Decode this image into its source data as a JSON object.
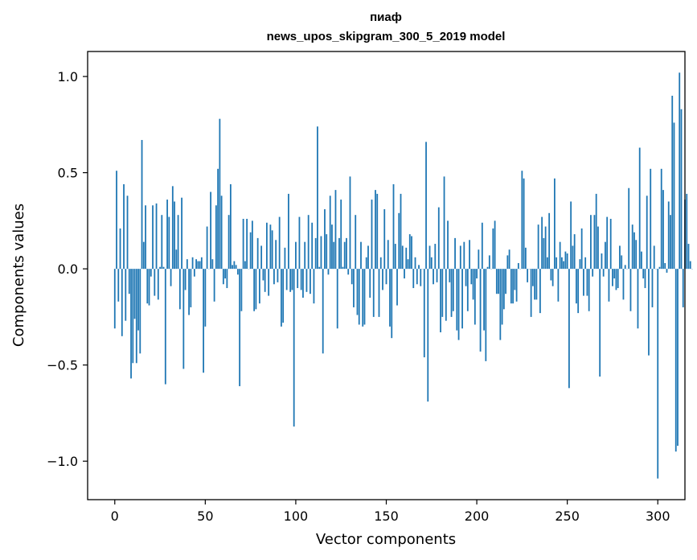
{
  "chart_data": {
    "type": "bar",
    "title": "пиаф",
    "subtitle": "news_upos_skipgram_300_5_2019 model",
    "xlabel": "Vector components",
    "ylabel": "Components values",
    "xlim": [
      -15,
      315
    ],
    "ylim": [
      -1.2,
      1.13
    ],
    "xticks": [
      0,
      50,
      100,
      150,
      200,
      250,
      300
    ],
    "yticks": [
      -1.0,
      -0.5,
      0.0,
      0.5,
      1.0
    ],
    "ytick_labels": [
      "−1.0",
      "−0.5",
      "0.0",
      "0.5",
      "1.0"
    ],
    "bar_color": "#1f77b4",
    "grid": false,
    "values": [
      -0.31,
      0.51,
      -0.17,
      0.21,
      -0.35,
      0.44,
      -0.27,
      0.38,
      -0.13,
      -0.57,
      -0.49,
      -0.26,
      -0.49,
      -0.32,
      -0.44,
      0.67,
      0.14,
      0.33,
      -0.18,
      -0.19,
      -0.04,
      0.33,
      -0.14,
      0.34,
      -0.16,
      0.01,
      0.28,
      0.01,
      -0.6,
      0.36,
      0.27,
      -0.09,
      0.43,
      0.35,
      0.1,
      0.28,
      -0.21,
      0.37,
      -0.52,
      -0.11,
      0.05,
      -0.24,
      -0.2,
      0.06,
      -0.04,
      0.05,
      0.04,
      0.04,
      0.06,
      -0.54,
      -0.3,
      0.22,
      0.0,
      0.4,
      0.05,
      -0.17,
      0.33,
      0.52,
      0.78,
      0.38,
      -0.08,
      -0.05,
      -0.1,
      0.28,
      0.44,
      0.02,
      0.04,
      0.02,
      -0.03,
      -0.61,
      -0.22,
      0.26,
      0.04,
      0.26,
      0.0,
      0.19,
      0.25,
      -0.22,
      -0.21,
      0.16,
      -0.18,
      0.12,
      -0.06,
      -0.12,
      0.24,
      -0.14,
      0.23,
      0.2,
      -0.08,
      0.15,
      -0.07,
      0.27,
      -0.3,
      -0.28,
      0.11,
      -0.11,
      0.39,
      -0.12,
      -0.11,
      -0.82,
      0.14,
      -0.1,
      0.27,
      -0.11,
      -0.15,
      0.14,
      -0.12,
      0.28,
      -0.13,
      0.24,
      -0.18,
      0.16,
      0.74,
      0.01,
      0.17,
      -0.44,
      0.31,
      0.18,
      -0.03,
      0.38,
      0.23,
      0.14,
      0.41,
      -0.31,
      0.16,
      0.36,
      0.01,
      0.14,
      0.16,
      -0.03,
      0.48,
      -0.08,
      -0.2,
      0.28,
      -0.24,
      -0.29,
      0.14,
      -0.3,
      -0.29,
      0.06,
      0.12,
      -0.15,
      0.36,
      -0.25,
      0.41,
      0.39,
      -0.25,
      0.06,
      -0.11,
      0.31,
      -0.08,
      0.15,
      -0.3,
      -0.36,
      0.44,
      0.13,
      -0.19,
      0.29,
      0.39,
      0.12,
      -0.05,
      0.11,
      0.05,
      0.18,
      0.17,
      -0.1,
      0.06,
      -0.08,
      0.02,
      -0.09,
      0.0,
      -0.46,
      0.66,
      -0.69,
      0.12,
      0.06,
      -0.08,
      0.13,
      -0.07,
      0.32,
      -0.33,
      -0.25,
      0.48,
      -0.27,
      0.25,
      -0.07,
      -0.25,
      -0.22,
      0.16,
      -0.32,
      -0.37,
      0.12,
      -0.31,
      0.14,
      -0.09,
      -0.22,
      0.15,
      -0.08,
      -0.16,
      -0.29,
      -0.05,
      0.1,
      -0.43,
      0.24,
      -0.32,
      -0.48,
      0.01,
      0.07,
      0.0,
      0.21,
      0.25,
      -0.13,
      -0.13,
      -0.37,
      -0.29,
      -0.21,
      -0.13,
      0.07,
      0.1,
      -0.18,
      -0.18,
      -0.11,
      -0.17,
      0.03,
      0.0,
      0.51,
      0.47,
      0.11,
      -0.07,
      0.0,
      -0.25,
      -0.09,
      -0.16,
      -0.16,
      0.23,
      -0.23,
      0.27,
      0.16,
      0.22,
      0.06,
      0.29,
      -0.06,
      -0.09,
      0.47,
      0.06,
      -0.17,
      0.14,
      0.06,
      0.04,
      0.09,
      0.08,
      -0.62,
      0.35,
      0.12,
      0.18,
      -0.18,
      -0.23,
      0.05,
      0.21,
      -0.14,
      0.06,
      -0.14,
      -0.22,
      0.28,
      -0.04,
      0.28,
      0.39,
      0.22,
      -0.56,
      0.08,
      -0.04,
      0.14,
      0.27,
      -0.17,
      0.26,
      -0.09,
      -0.05,
      -0.11,
      -0.1,
      0.12,
      0.07,
      -0.16,
      0.02,
      0.0,
      0.42,
      -0.22,
      0.23,
      0.19,
      0.15,
      -0.31,
      0.63,
      0.09,
      -0.05,
      -0.1,
      0.38,
      -0.45,
      0.52,
      -0.2,
      0.12,
      0.0,
      -1.09,
      0.01,
      0.52,
      0.41,
      0.03,
      -0.02,
      0.35,
      0.28,
      0.9,
      0.76,
      -0.95,
      -0.92,
      1.02,
      0.83,
      -0.2,
      0.36,
      0.39,
      0.13,
      0.04,
      0.0
    ]
  }
}
